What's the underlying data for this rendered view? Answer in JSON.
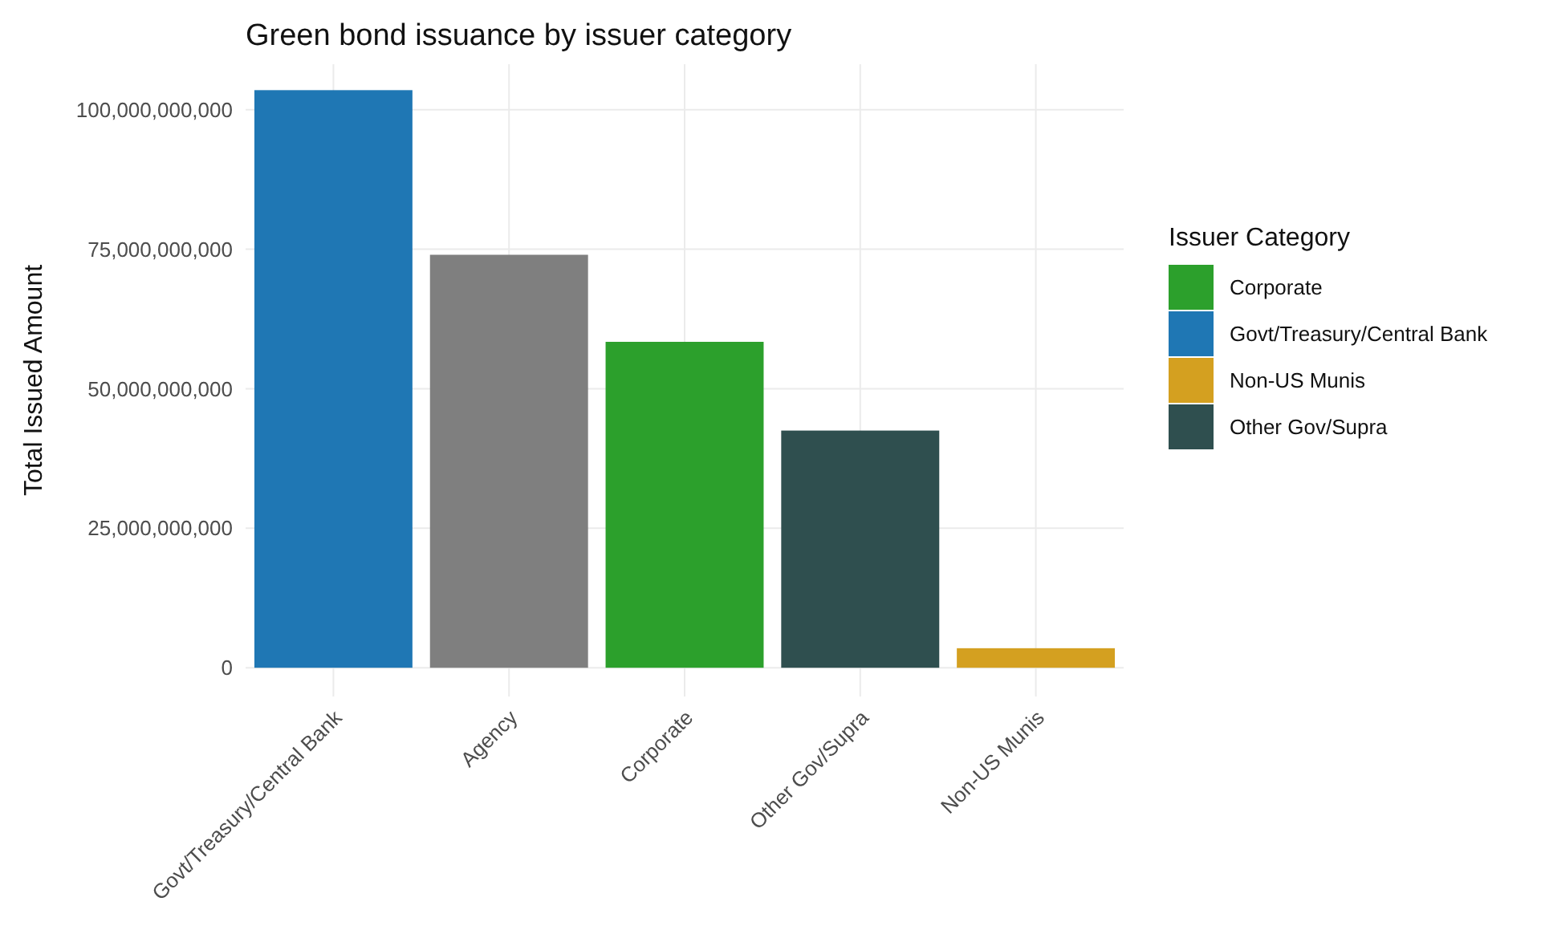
{
  "chart_data": {
    "type": "bar",
    "title": "Green bond issuance by issuer category",
    "ylabel": "Total Issued Amount",
    "legend_title": "Issuer Category",
    "categories": [
      "Govt/Treasury/Central Bank",
      "Agency",
      "Corporate",
      "Other Gov/Supra",
      "Non-US Munis"
    ],
    "series": [
      {
        "name": "Corporate",
        "color": "#2ca02c",
        "values": [
          null,
          null,
          58400000000,
          null,
          null
        ]
      },
      {
        "name": "Govt/Treasury/Central Bank",
        "color": "#1f77b4",
        "values": [
          103500000000,
          null,
          null,
          null,
          null
        ]
      },
      {
        "name": "Non-US Munis",
        "color": "#d4a020",
        "values": [
          null,
          null,
          null,
          null,
          3500000000
        ]
      },
      {
        "name": "Other Gov/Supra",
        "color": "#2f4f4f",
        "values": [
          null,
          null,
          null,
          42500000000,
          null
        ]
      },
      {
        "color": "#7f7f7f",
        "values": [
          null,
          74000000000,
          null,
          null,
          null
        ]
      }
    ],
    "stacked": true,
    "ylim": [
      -5150000000,
      108150000000
    ],
    "yticks": [
      0,
      {
        "value": 25000000000,
        "label": "25,000,000,000"
      },
      {
        "value": 50000000000,
        "label": "50,000,000,000"
      },
      {
        "value": 75000000000,
        "label": "75,000,000,000"
      },
      {
        "value": 100000000000,
        "label": "100,000,000,000"
      }
    ],
    "grid": true,
    "legend": "right"
  }
}
